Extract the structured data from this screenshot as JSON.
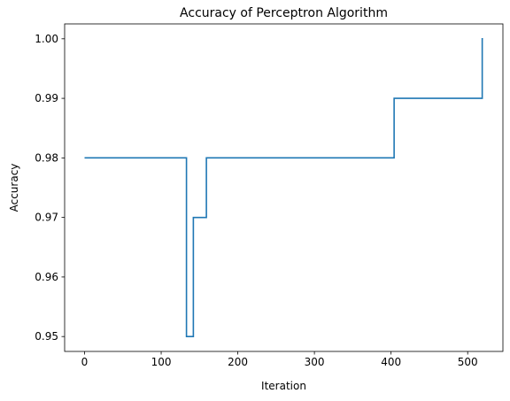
{
  "chart_data": {
    "type": "line",
    "title": "Accuracy of Perceptron Algorithm",
    "xlabel": "Iteration",
    "ylabel": "Accuracy",
    "xlim": [
      -26,
      546
    ],
    "ylim": [
      0.9475,
      1.0025
    ],
    "x_ticks": [
      0,
      100,
      200,
      300,
      400,
      500
    ],
    "x_tick_labels": [
      "0",
      "100",
      "200",
      "300",
      "400",
      "500"
    ],
    "y_ticks": [
      0.95,
      0.96,
      0.97,
      0.98,
      0.99,
      1.0
    ],
    "y_tick_labels": [
      "0.95",
      "0.96",
      "0.97",
      "0.98",
      "0.99",
      "1.00"
    ],
    "grid": false,
    "series": [
      {
        "color": "#1f77b4",
        "step": "post",
        "x": [
          0,
          133,
          142,
          159,
          404,
          519,
          520
        ],
        "y": [
          0.98,
          0.95,
          0.97,
          0.98,
          0.99,
          1.0,
          1.0
        ]
      }
    ]
  }
}
